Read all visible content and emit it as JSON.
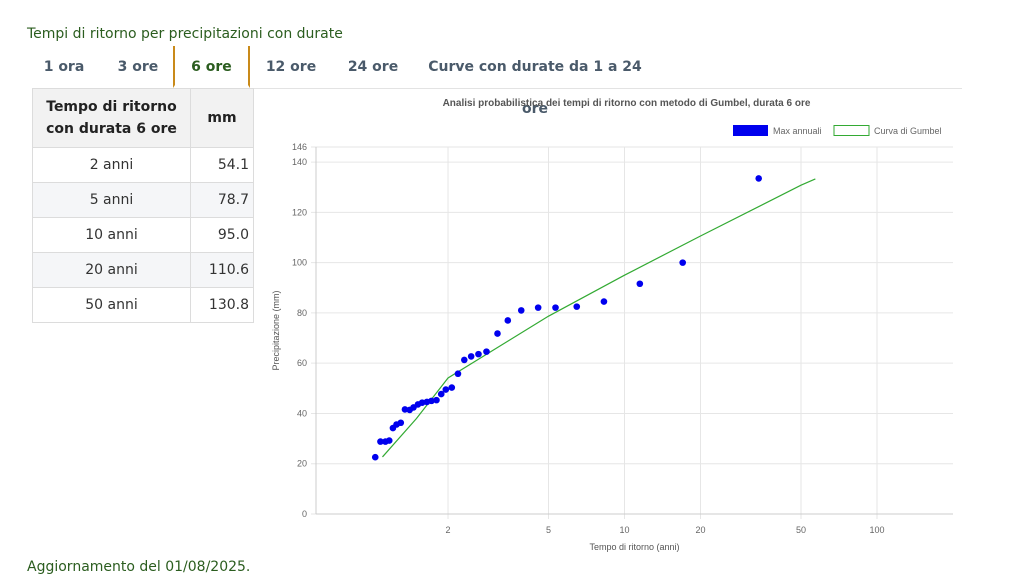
{
  "section_title": "Tempi di ritorno per precipitazioni con durate",
  "tabs": [
    {
      "label": "1 ora",
      "active": false
    },
    {
      "label": "3 ore",
      "active": false
    },
    {
      "label": "6 ore",
      "active": true
    },
    {
      "label": "12 ore",
      "active": false
    },
    {
      "label": "24 ore",
      "active": false
    },
    {
      "label": "Curve con durate da 1 a 24 ore",
      "active": false
    }
  ],
  "table": {
    "header_col1": "Tempo di ritorno con durata 6 ore",
    "header_col2": "mm",
    "rows": [
      {
        "label": "2 anni",
        "value": "54.1"
      },
      {
        "label": "5 anni",
        "value": "78.7"
      },
      {
        "label": "10 anni",
        "value": "95.0"
      },
      {
        "label": "20 anni",
        "value": "110.6"
      },
      {
        "label": "50 anni",
        "value": "130.8"
      }
    ]
  },
  "chart_data": {
    "type": "scatter",
    "title": "Analisi probabilistica dei tempi di ritorno con metodo di Gumbel, durata 6 ore",
    "xlabel": "Tempo di ritorno (anni)",
    "ylabel": "Precipitazione (mm)",
    "x_scale": "log",
    "xlim": [
      0.6,
      200
    ],
    "ylim": [
      0,
      146
    ],
    "x_ticks": [
      2,
      5,
      10,
      20,
      50,
      100
    ],
    "y_ticks": [
      0,
      20,
      40,
      60,
      80,
      100,
      120,
      140,
      146
    ],
    "legend_position": "top-right",
    "grid": true,
    "series": [
      {
        "name": "Max annuali",
        "kind": "scatter",
        "color": "#0000ee",
        "points": [
          [
            1.03,
            22.6
          ],
          [
            1.08,
            28.8
          ],
          [
            1.13,
            28.8
          ],
          [
            1.17,
            29.2
          ],
          [
            1.21,
            34.2
          ],
          [
            1.25,
            35.6
          ],
          [
            1.3,
            36.3
          ],
          [
            1.35,
            41.6
          ],
          [
            1.41,
            41.4
          ],
          [
            1.46,
            42.4
          ],
          [
            1.52,
            43.6
          ],
          [
            1.58,
            44.3
          ],
          [
            1.65,
            44.6
          ],
          [
            1.72,
            45
          ],
          [
            1.8,
            45.3
          ],
          [
            1.88,
            47.7
          ],
          [
            1.96,
            49.5
          ],
          [
            2.07,
            50.3
          ],
          [
            2.19,
            55.8
          ],
          [
            2.32,
            61.3
          ],
          [
            2.47,
            62.7
          ],
          [
            2.64,
            63.6
          ],
          [
            2.84,
            64.6
          ],
          [
            3.14,
            71.8
          ],
          [
            3.45,
            77
          ],
          [
            3.9,
            81
          ],
          [
            4.55,
            82.1
          ],
          [
            5.33,
            82.1
          ],
          [
            6.47,
            82.5
          ],
          [
            8.29,
            84.5
          ],
          [
            11.5,
            91.6
          ],
          [
            17,
            100
          ],
          [
            34,
            133.5
          ]
        ]
      },
      {
        "name": "Curva di Gumbel",
        "kind": "line",
        "color": "#33aa33",
        "points": [
          [
            1.1,
            22.7
          ],
          [
            1.5,
            38
          ],
          [
            2,
            54.1
          ],
          [
            5,
            78.7
          ],
          [
            10,
            95
          ],
          [
            20,
            110.6
          ],
          [
            50,
            130.8
          ],
          [
            57,
            133.3
          ]
        ]
      }
    ]
  },
  "footer": "Aggiornamento del 01/08/2025."
}
